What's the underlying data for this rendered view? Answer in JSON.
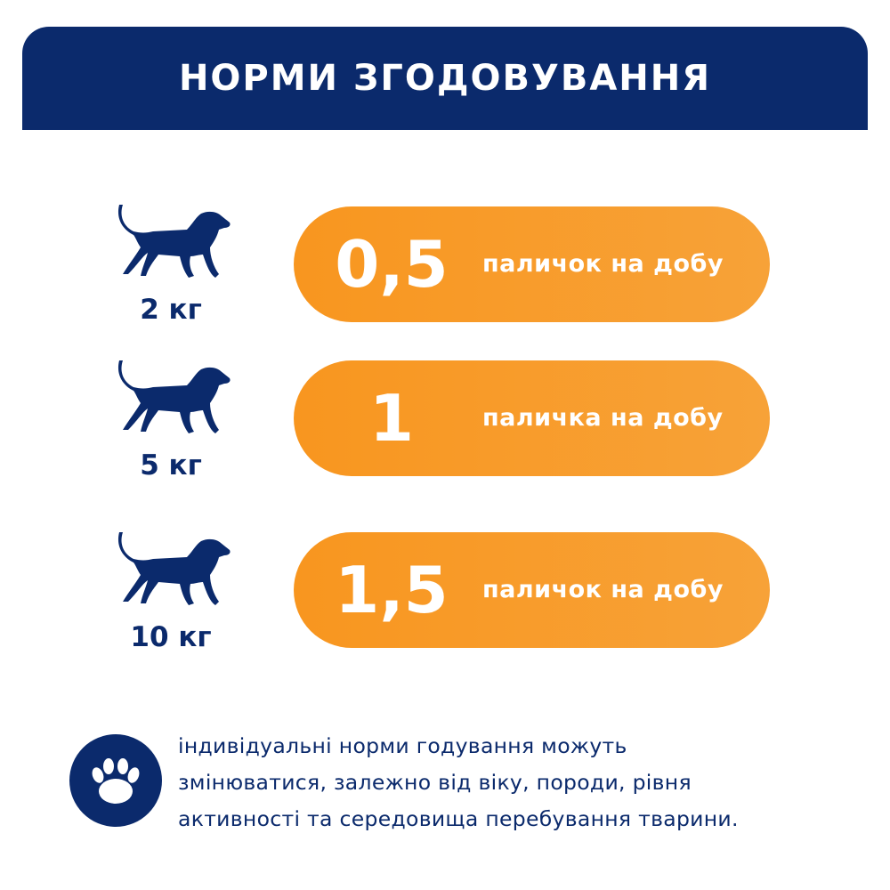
{
  "header": {
    "title": "НОРМИ ЗГОДОВУВАННЯ"
  },
  "colors": {
    "navy": "#0b2a6c",
    "orange": "#f8961f"
  },
  "rows": [
    {
      "weight": "2 кг",
      "amount": "0,5",
      "unit": "паличок на добу",
      "icon": "dog-icon"
    },
    {
      "weight": "5 кг",
      "amount": "1",
      "unit": "паличка на добу",
      "icon": "dog-icon"
    },
    {
      "weight": "10 кг",
      "amount": "1,5",
      "unit": "паличок на добу",
      "icon": "dog-icon"
    }
  ],
  "note": {
    "icon": "paw-icon",
    "lines": [
      "індивідуальні норми годування можуть",
      "змінюватися, залежно від віку, породи, рівня",
      "активності та середовища перебування тварини."
    ]
  }
}
